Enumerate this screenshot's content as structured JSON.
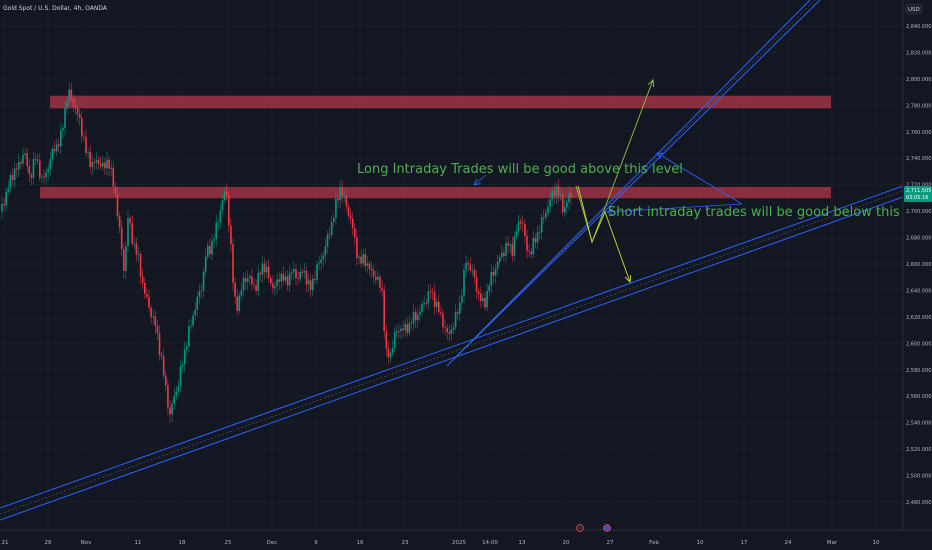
{
  "header": {
    "symbol_title": "Gold Spot / U.S. Dollar, 4h, OANDA"
  },
  "currency_button": {
    "label": "USD"
  },
  "price_labels": {
    "current_price": "2,711.505",
    "countdown": "03:05:16"
  },
  "annotations": {
    "long_text": "Long Intraday Trades will be good above this level",
    "short_text": "Short intraday trades will be good below this trend line"
  },
  "colors": {
    "background": "#131722",
    "grid": "#1e222d",
    "up_candle": "#089981",
    "down_candle": "#f23645",
    "zone": "#b2374a",
    "trend_line": "#2962ff",
    "label_text": "#4caf50",
    "arrow_long": "#8bc34a",
    "arrow_short": "#cddc39",
    "current_price_badge": "#089981"
  },
  "chart_data": {
    "type": "candlestick",
    "title": "Gold Spot / U.S. Dollar, 4h, OANDA",
    "ylim": [
      2470,
      2850
    ],
    "y_ticks": [
      2480,
      2500,
      2520,
      2540,
      2560,
      2580,
      2600,
      2620,
      2640,
      2660,
      2680,
      2700,
      2720,
      2740,
      2760,
      2780,
      2800,
      2820,
      2840
    ],
    "y_tick_labels": [
      "2,480.000",
      "2,500.000",
      "2,520.000",
      "2,540.000",
      "2,560.000",
      "2,580.000",
      "2,600.000",
      "2,620.000",
      "2,640.000",
      "2,660.000",
      "2,680.000",
      "2,700.000",
      "2,720.000",
      "2,740.000",
      "2,760.000",
      "2,780.000",
      "2,800.000",
      "2,820.000",
      "2,840.000"
    ],
    "x_tick_labels": [
      "21",
      "28",
      "Nov",
      "11",
      "18",
      "25",
      "Dec",
      "9",
      "16",
      "23",
      "2025",
      "14:00",
      "13",
      "20",
      "27",
      "Feb",
      "10",
      "17",
      "24",
      "Mar",
      "10"
    ],
    "price_path": [
      [
        0,
        2700
      ],
      [
        6,
        2712
      ],
      [
        12,
        2728
      ],
      [
        18,
        2733
      ],
      [
        24,
        2745
      ],
      [
        30,
        2725
      ],
      [
        36,
        2742
      ],
      [
        42,
        2722
      ],
      [
        48,
        2733
      ],
      [
        54,
        2748
      ],
      [
        60,
        2752
      ],
      [
        66,
        2782
      ],
      [
        70,
        2790
      ],
      [
        74,
        2780
      ],
      [
        80,
        2768
      ],
      [
        86,
        2745
      ],
      [
        92,
        2735
      ],
      [
        98,
        2738
      ],
      [
        104,
        2732
      ],
      [
        108,
        2740
      ],
      [
        112,
        2725
      ],
      [
        116,
        2710
      ],
      [
        120,
        2682
      ],
      [
        124,
        2655
      ],
      [
        128,
        2695
      ],
      [
        132,
        2680
      ],
      [
        138,
        2665
      ],
      [
        144,
        2640
      ],
      [
        150,
        2625
      ],
      [
        156,
        2612
      ],
      [
        162,
        2585
      ],
      [
        166,
        2565
      ],
      [
        170,
        2545
      ],
      [
        174,
        2560
      ],
      [
        178,
        2568
      ],
      [
        184,
        2592
      ],
      [
        190,
        2612
      ],
      [
        196,
        2630
      ],
      [
        202,
        2644
      ],
      [
        206,
        2668
      ],
      [
        210,
        2672
      ],
      [
        214,
        2680
      ],
      [
        220,
        2700
      ],
      [
        226,
        2718
      ],
      [
        230,
        2682
      ],
      [
        234,
        2635
      ],
      [
        238,
        2628
      ],
      [
        244,
        2650
      ],
      [
        250,
        2648
      ],
      [
        256,
        2642
      ],
      [
        262,
        2660
      ],
      [
        268,
        2652
      ],
      [
        274,
        2640
      ],
      [
        280,
        2652
      ],
      [
        286,
        2646
      ],
      [
        292,
        2655
      ],
      [
        298,
        2650
      ],
      [
        304,
        2655
      ],
      [
        310,
        2640
      ],
      [
        316,
        2655
      ],
      [
        322,
        2665
      ],
      [
        328,
        2680
      ],
      [
        334,
        2698
      ],
      [
        340,
        2718
      ],
      [
        346,
        2705
      ],
      [
        352,
        2690
      ],
      [
        356,
        2672
      ],
      [
        360,
        2660
      ],
      [
        364,
        2665
      ],
      [
        370,
        2655
      ],
      [
        376,
        2650
      ],
      [
        382,
        2640
      ],
      [
        386,
        2592
      ],
      [
        390,
        2590
      ],
      [
        394,
        2605
      ],
      [
        400,
        2612
      ],
      [
        406,
        2610
      ],
      [
        412,
        2618
      ],
      [
        418,
        2622
      ],
      [
        424,
        2630
      ],
      [
        430,
        2640
      ],
      [
        436,
        2630
      ],
      [
        442,
        2618
      ],
      [
        448,
        2605
      ],
      [
        452,
        2612
      ],
      [
        456,
        2620
      ],
      [
        460,
        2630
      ],
      [
        466,
        2662
      ],
      [
        472,
        2655
      ],
      [
        478,
        2638
      ],
      [
        484,
        2628
      ],
      [
        490,
        2648
      ],
      [
        496,
        2658
      ],
      [
        502,
        2668
      ],
      [
        508,
        2675
      ],
      [
        512,
        2670
      ],
      [
        518,
        2690
      ],
      [
        522,
        2695
      ],
      [
        526,
        2672
      ],
      [
        530,
        2668
      ],
      [
        536,
        2680
      ],
      [
        540,
        2688
      ],
      [
        546,
        2700
      ],
      [
        552,
        2712
      ],
      [
        556,
        2718
      ],
      [
        560,
        2710
      ],
      [
        564,
        2700
      ],
      [
        568,
        2710
      ],
      [
        572,
        2713
      ]
    ],
    "resistance_zones": [
      {
        "low": 2780,
        "high": 2785
      },
      {
        "low": 2712,
        "high": 2716
      }
    ],
    "annotations": [
      "Long Intraday Trades will be good above this level",
      "Short intraday trades will be good below this trend line"
    ],
    "current_price": 2711.505,
    "grid": true,
    "price_axis": "right"
  }
}
